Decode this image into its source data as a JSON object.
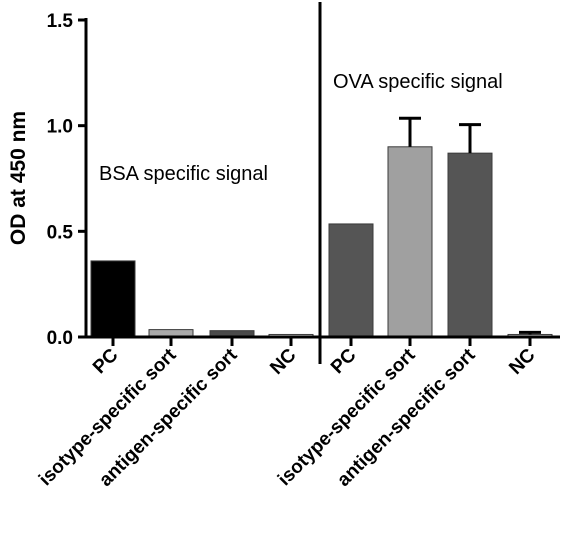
{
  "chart_data": {
    "type": "bar",
    "title": "",
    "xlabel": "",
    "ylabel": "OD at 450 nm",
    "ylim": [
      0,
      1.5
    ],
    "yticks": [
      0.0,
      0.5,
      1.0,
      1.5
    ],
    "ytick_labels": [
      "0.0",
      "0.5",
      "1.0",
      "1.5"
    ],
    "grid": false,
    "categories": [
      "PC",
      "isotype-specific sort",
      "antigen-specific sort",
      "NC",
      "PC",
      "isotype-specific sort",
      "antigen-specific sort",
      "NC"
    ],
    "values": [
      0.36,
      0.035,
      0.03,
      0.012,
      0.535,
      0.9,
      0.87,
      0.012
    ],
    "errors": [
      null,
      null,
      null,
      null,
      null,
      0.135,
      0.135,
      0.01
    ],
    "colors": [
      "#000000",
      "#aaaaaa",
      "#4a4a4a",
      "#dddddd",
      "#555555",
      "#a0a0a0",
      "#555555",
      "#dddddd"
    ],
    "annotations": [
      "BSA specific signal",
      "OVA specific signal"
    ]
  }
}
